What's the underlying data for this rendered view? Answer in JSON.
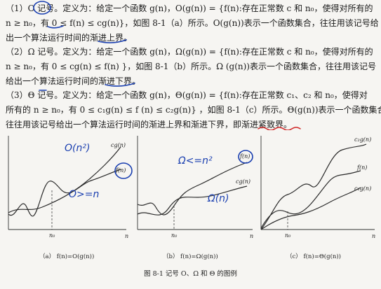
{
  "paragraphs": [
    {
      "lines": [
        "（1）O 记号。定义为：给定一个函数 g(n)，O(g(n)) = {f(n):存在正常数 c 和 n₀，使得对所有的",
        "n ≥ n₀，有 0 ≤ f(n) ≤ cg(n)}，如图 8-1（a）所示。O(g(n))表示一个函数集合，往往用该记号给",
        "出一个算法运行时间的渐进上界。"
      ]
    },
    {
      "lines": [
        "（2）Ω 记号。定义为：给定一个函数 g(n)，Ω(g(n)) = {f(n):存在正常数 c 和 n₀，使得对所有的",
        "n ≥ n₀，有 0 ≤ cg(n) ≤ f(n) }，如图 8-1（b）所示。Ω (g(n))表示一个函数集合，往往用该记号",
        "给出一个算法运行时间的渐进下界。"
      ]
    },
    {
      "lines": [
        "（3）Θ 记号。定义为：给定一个函数 g(n)，Θ(g(n)) = {f(n):存在正常数 c₁、c₂ 和 n₀，使得对",
        "所有的 n ≥ n₀，有 0 ≤ c₁g(n) ≤ f (n)   ≤ c₂g(n)}  ，如图 8-1（c）所示。Θ(g(n))表示一个函数集合，",
        "往往用该记号给出一个算法运行时间的渐进上界和渐进下界，即渐进紧致界。"
      ]
    }
  ],
  "figure": {
    "panels": [
      {
        "caption": "（a） f(n)=O(g(n))",
        "curve_labels": [
          "cg(n)",
          "f(n)"
        ],
        "axis_labels": {
          "x": "n",
          "n0": "n₀"
        },
        "handwriting": [
          "O(n²)",
          "O>=n"
        ]
      },
      {
        "caption": "（b） f(n)=Ω(g(n))",
        "curve_labels": [
          "f(n)",
          "cg(n)"
        ],
        "axis_labels": {
          "x": "n",
          "n0": "n₀"
        },
        "handwriting": [
          "Ω<=n²",
          "Ω(n)"
        ]
      },
      {
        "caption": "（c） f(n)=Θ(g(n))",
        "curve_labels": [
          "c₂g(n)",
          "f(n)",
          "c₁g(n)"
        ],
        "axis_labels": {
          "x": "n",
          "n0": "n₀"
        },
        "handwriting": []
      }
    ],
    "caption": "图 8-1    记号 O、Ω 和 Θ 的图例"
  },
  "colors": {
    "handwriting": "#1a3fb0",
    "underline_red": "#d02a2a",
    "background": "#f6f5f2"
  }
}
